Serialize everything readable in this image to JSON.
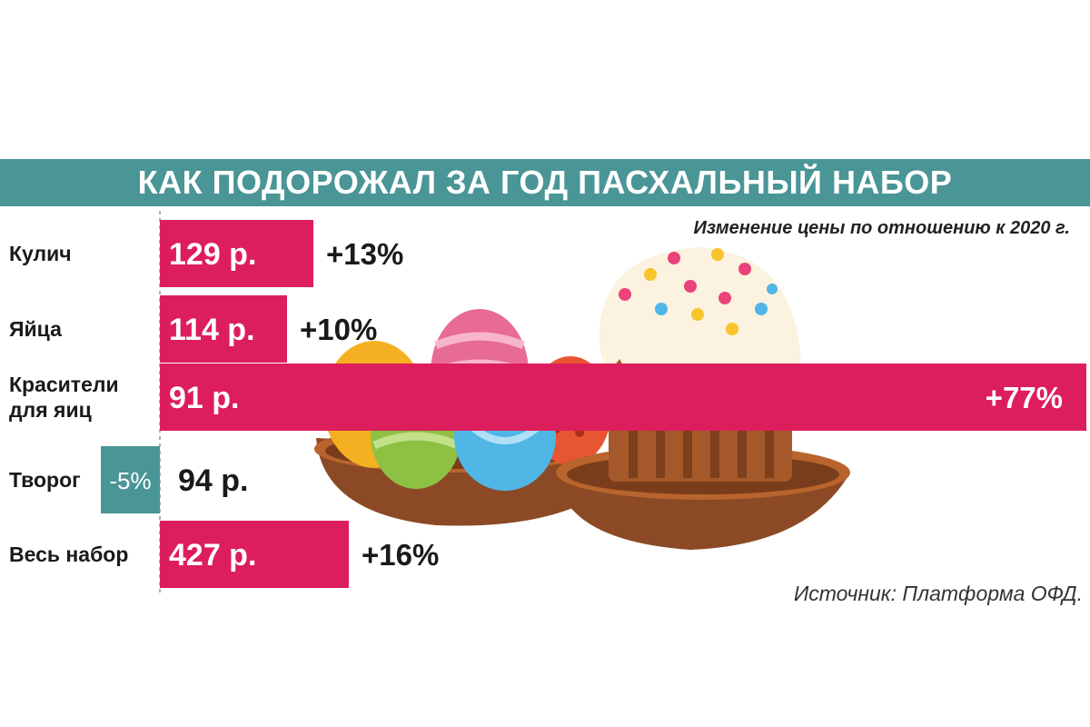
{
  "header": {
    "title": "КАК ПОДОРОЖАЛ ЗА ГОД ПАСХАЛЬНЫЙ НАБОР",
    "subtitle": "Изменение цены по отношению к 2020 г.",
    "source": "Источник: Платформа ОФД."
  },
  "colors": {
    "accent": "#4a9596",
    "bar": "#dd1e5c",
    "negative": "#4a9596"
  },
  "chart_data": {
    "type": "bar",
    "orientation": "horizontal",
    "title": "КАК ПОДОРОЖАЛ ЗА ГОД ПАСХАЛЬНЫЙ НАБОР",
    "subtitle": "Изменение цены по отношению к 2020 г.",
    "categories": [
      [
        "Кулич"
      ],
      [
        "Яйца"
      ],
      [
        "Красители",
        "для яиц"
      ],
      [
        "Творог"
      ],
      [
        "Весь набор"
      ]
    ],
    "price_labels": [
      "129 р.",
      "114 р.",
      "91 р.",
      "94 р.",
      "427 р."
    ],
    "change_labels": [
      "+13%",
      "+10%",
      "+77%",
      "-5%",
      "+16%"
    ],
    "values": [
      13,
      10,
      77,
      -5,
      16
    ],
    "unit": "%",
    "source": "Источник: Платформа ОФД."
  }
}
